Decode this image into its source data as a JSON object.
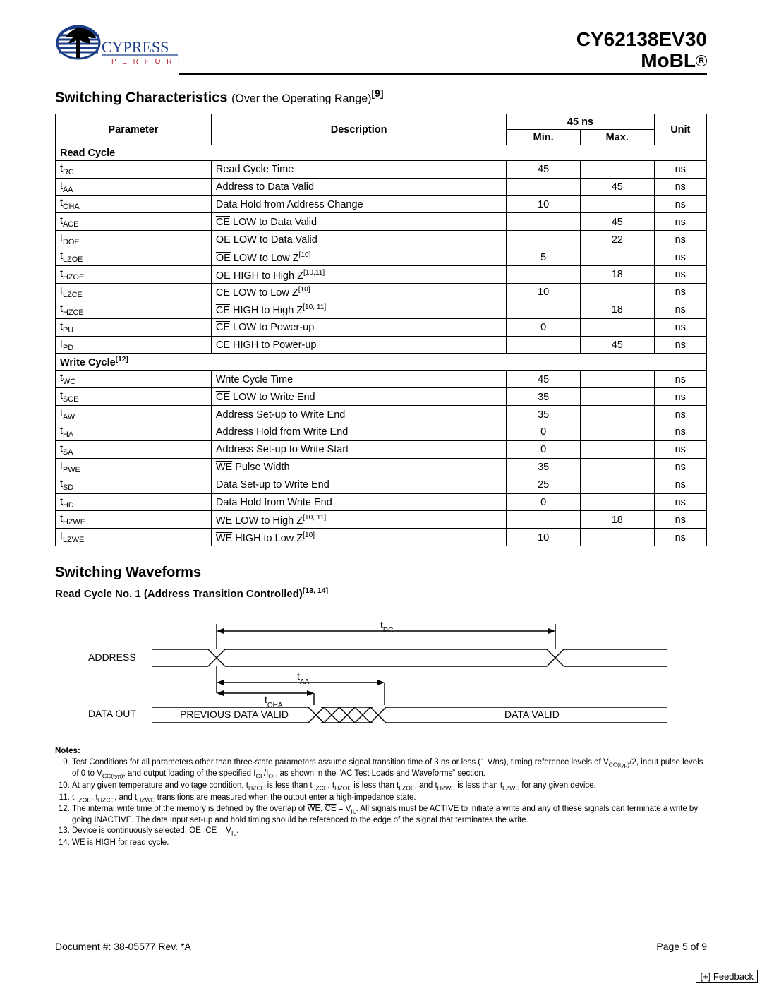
{
  "header": {
    "company": "CYPRESS",
    "tagline": "P E R F O R M",
    "part_number": "CY62138EV30",
    "subtitle": "MoBL"
  },
  "section_switching_chars": {
    "title": "Switching Characteristics",
    "subtitle": "Over the Operating Range",
    "footnote_ref": "[9]"
  },
  "table": {
    "col_parameter": "Parameter",
    "col_description": "Description",
    "col_timing": "45 ns",
    "col_min": "Min.",
    "col_max": "Max.",
    "col_unit": "Unit",
    "section_read": "Read Cycle",
    "section_write_label": "Write Cycle",
    "section_write_ref": "[12]",
    "rows": [
      {
        "sym": "t",
        "sub": "RC",
        "desc": "Read Cycle Time",
        "min": "45",
        "max": "",
        "unit": "ns"
      },
      {
        "sym": "t",
        "sub": "AA",
        "desc": "Address to Data Valid",
        "min": "",
        "max": "45",
        "unit": "ns"
      },
      {
        "sym": "t",
        "sub": "OHA",
        "desc": "Data Hold from Address Change",
        "min": "10",
        "max": "",
        "unit": "ns"
      },
      {
        "sym": "t",
        "sub": "ACE",
        "ovl": "CE",
        "desc_rest": " LOW to Data Valid",
        "min": "",
        "max": "45",
        "unit": "ns"
      },
      {
        "sym": "t",
        "sub": "DOE",
        "ovl": "OE",
        "desc_rest": " LOW to Data Valid",
        "min": "",
        "max": "22",
        "unit": "ns"
      },
      {
        "sym": "t",
        "sub": "LZOE",
        "ovl": "OE",
        "desc_rest": " LOW to Low Z",
        "sup": "[10]",
        "min": "5",
        "max": "",
        "unit": "ns"
      },
      {
        "sym": "t",
        "sub": "HZOE",
        "ovl": "OE",
        "desc_rest": " HIGH to High Z",
        "sup": "[10,11]",
        "min": "",
        "max": "18",
        "unit": "ns"
      },
      {
        "sym": "t",
        "sub": "LZCE",
        "ovl": "CE",
        "desc_rest": " LOW to Low Z",
        "sup": "[10]",
        "min": "10",
        "max": "",
        "unit": "ns"
      },
      {
        "sym": "t",
        "sub": "HZCE",
        "ovl": "CE",
        "desc_rest": " HIGH to High Z",
        "sup": "[10, 11]",
        "min": "",
        "max": "18",
        "unit": "ns"
      },
      {
        "sym": "t",
        "sub": "PU",
        "ovl": "CE",
        "desc_rest": " LOW to Power-up",
        "min": "0",
        "max": "",
        "unit": "ns"
      },
      {
        "sym": "t",
        "sub": "PD",
        "ovl": "CE",
        "desc_rest": " HIGH to Power-up",
        "min": "",
        "max": "45",
        "unit": "ns"
      }
    ],
    "rows_write": [
      {
        "sym": "t",
        "sub": "WC",
        "desc": "Write Cycle Time",
        "min": "45",
        "max": "",
        "unit": "ns"
      },
      {
        "sym": "t",
        "sub": "SCE",
        "ovl": "CE",
        "desc_rest": " LOW to Write End",
        "min": "35",
        "max": "",
        "unit": "ns"
      },
      {
        "sym": "t",
        "sub": "AW",
        "desc": "Address Set-up to Write End",
        "min": "35",
        "max": "",
        "unit": "ns"
      },
      {
        "sym": "t",
        "sub": "HA",
        "desc": "Address Hold from Write End",
        "min": "0",
        "max": "",
        "unit": "ns"
      },
      {
        "sym": "t",
        "sub": "SA",
        "desc": "Address Set-up to Write Start",
        "min": "0",
        "max": "",
        "unit": "ns"
      },
      {
        "sym": "t",
        "sub": "PWE",
        "ovl": "WE",
        "desc_rest": " Pulse Width",
        "min": "35",
        "max": "",
        "unit": "ns"
      },
      {
        "sym": "t",
        "sub": "SD",
        "desc": "Data Set-up to Write End",
        "min": "25",
        "max": "",
        "unit": "ns"
      },
      {
        "sym": "t",
        "sub": "HD",
        "desc": "Data Hold from Write End",
        "min": "0",
        "max": "",
        "unit": "ns"
      },
      {
        "sym": "t",
        "sub": "HZWE",
        "ovl": "WE",
        "desc_rest": " LOW to High Z",
        "sup": "[10, 11]",
        "min": "",
        "max": "18",
        "unit": "ns"
      },
      {
        "sym": "t",
        "sub": "LZWE",
        "ovl": "WE",
        "desc_rest": " HIGH to Low Z",
        "sup": "[10]",
        "min": "10",
        "max": "",
        "unit": "ns"
      }
    ]
  },
  "section_waveforms": {
    "title": "Switching Waveforms",
    "subtitle": "Read Cycle No. 1 (Address Transition Controlled)",
    "subtitle_ref": "[13, 14]"
  },
  "waveform": {
    "label_address": "ADDRESS",
    "label_dataout": "DATA OUT",
    "label_trc": "t",
    "label_trc_sub": "RC",
    "label_taa": "t",
    "label_taa_sub": "AA",
    "label_toha": "t",
    "label_toha_sub": "OHA",
    "text_prev": "PREVIOUS DATA VALID",
    "text_valid": "DATA VALID"
  },
  "notes": {
    "heading": "Notes:",
    "items": [
      {
        "n": "9",
        "html": "Test Conditions for all parameters other than three-state parameters assume signal transition time of 3 ns or less (1 V/ns), timing reference levels of V<sub>CC(typ)</sub>/2, input pulse levels of 0 to V<sub>CC(typ)</sub>, and output loading of the specified I<sub>OL</sub>/I<sub>OH</sub> as shown in the “AC Test Loads and Waveforms” section."
      },
      {
        "n": "10",
        "html": "At any given temperature and voltage condition, t<sub>HZCE</sub> is less than t<sub>LZCE</sub>, t<sub>HZOE</sub> is less than t<sub>LZOE</sub>, and t<sub>HZWE</sub> is less than t<sub>LZWE</sub> for any given device."
      },
      {
        "n": "11",
        "html": "t<sub>HZOE</sub>, t<sub>HZCE</sub>, and t<sub>HZWE</sub> transitions are measured when the output enter a high-impedance state."
      },
      {
        "n": "12",
        "html": "The internal write time of the memory is defined by the overlap of <span class=\"ovl\">WE</span>, <span class=\"ovl\">CE</span> = V<sub>IL</sub>. All signals must be ACTIVE to initiate a write and any of these signals can terminate a write by going INACTIVE. The data input set-up and hold timing should be referenced to the edge of the signal that terminates the write."
      },
      {
        "n": "13",
        "html": "Device is continuously selected. <span class=\"ovl\">OE</span>, <span class=\"ovl\">CE</span> = V<sub>IL</sub>."
      },
      {
        "n": "14",
        "html": "<span class=\"ovl\">WE</span> is HIGH for read cycle."
      }
    ]
  },
  "footer": {
    "doc": "Document #: 38-05577 Rev. *A",
    "page": "Page 5 of 9",
    "feedback": "[+] Feedback"
  }
}
